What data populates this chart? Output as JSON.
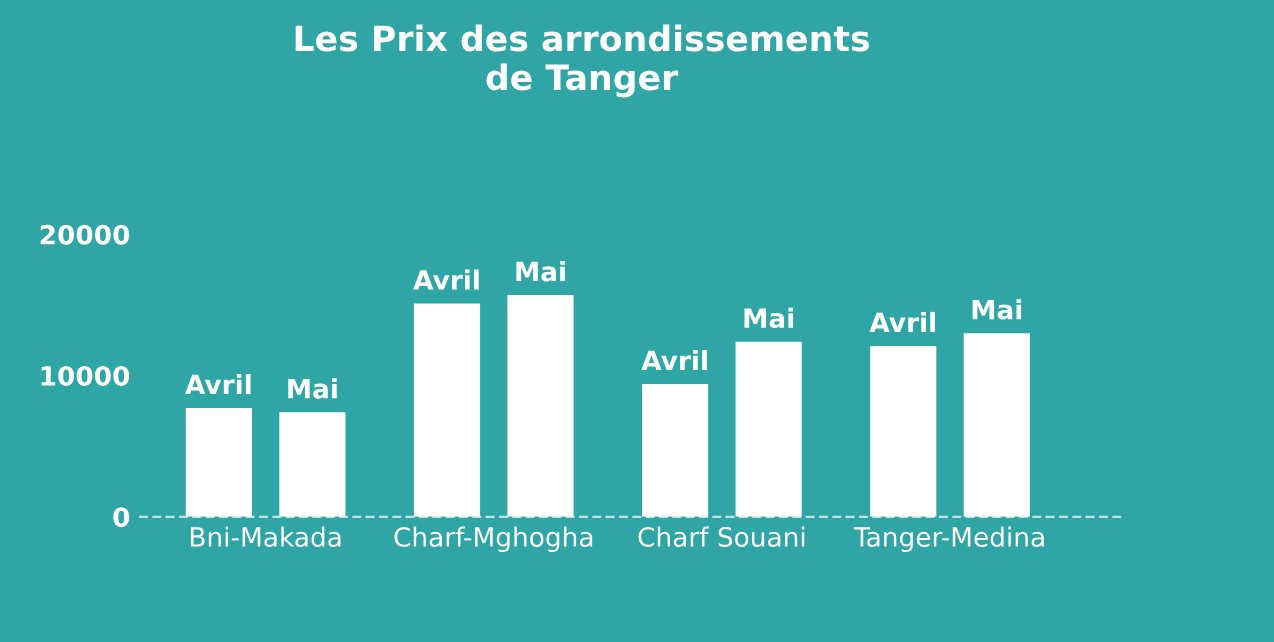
{
  "chart_data": {
    "type": "bar",
    "title": "Les Prix des arrondissements\nde Tanger",
    "categories": [
      "Bni-Makada",
      "Charf-Mghogha",
      "Charf Souani",
      "Tanger-Medina"
    ],
    "series": [
      {
        "name": "Avril",
        "color": "#ffffff",
        "values": [
          7700,
          15100,
          9400,
          12100
        ]
      },
      {
        "name": "Mai",
        "color": "#ffffff",
        "values": [
          7400,
          15700,
          12400,
          13000
        ]
      }
    ],
    "ylim": [
      0,
      20000
    ],
    "yticks": [
      0,
      10000,
      20000
    ],
    "grid": false,
    "legend": false
  }
}
